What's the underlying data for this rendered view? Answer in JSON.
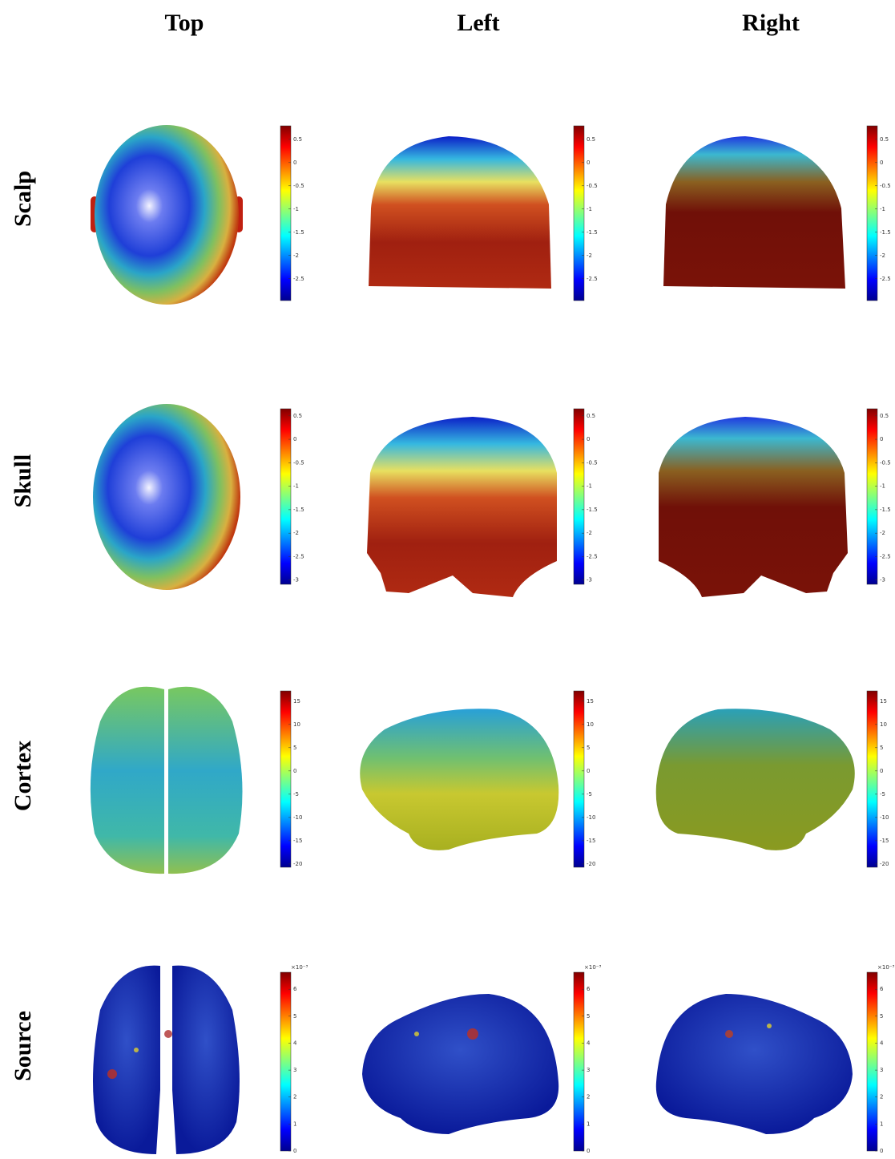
{
  "columns": [
    "Top",
    "Left",
    "Right"
  ],
  "rows": [
    {
      "label": "Scalp",
      "colorbar": {
        "lim": [
          -2.97,
          0.79
        ],
        "ticks": [
          0.5,
          0,
          -0.5,
          -1,
          -1.5,
          -2,
          -2.5
        ]
      }
    },
    {
      "label": "Skull",
      "colorbar": {
        "lim": [
          -3.09,
          0.65
        ],
        "ticks": [
          0.5,
          0,
          -0.5,
          -1,
          -1.5,
          -2,
          -2.5,
          -3
        ]
      }
    },
    {
      "label": "Cortex",
      "colorbar": {
        "lim": [
          -20.7,
          17.2
        ],
        "ticks": [
          15,
          10,
          5,
          0,
          -5,
          -10,
          -15,
          -20
        ]
      }
    },
    {
      "label": "Source",
      "colorbar": {
        "lim": [
          0,
          6.63
        ],
        "ticks": [
          6,
          5,
          4,
          3,
          2,
          1,
          0
        ],
        "multiplier": "×10⁻³"
      }
    }
  ]
}
